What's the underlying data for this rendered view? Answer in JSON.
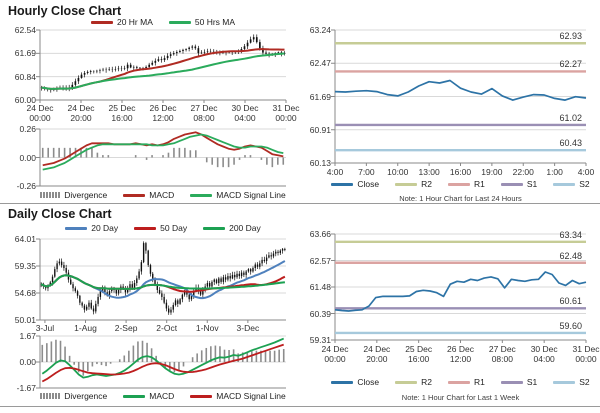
{
  "page": {
    "hourly_section_title": "Hourly Close Chart",
    "daily_section_title": "Daily Close Chart"
  },
  "colors": {
    "hourly_ma20": "#b02b23",
    "hourly_ma50": "#2bab5c",
    "daily_ma20": "#4f81bd",
    "daily_ma50": "#bd1e1e",
    "daily_ma200": "#1ca152",
    "close_line": "#2d73a6",
    "r2": "#c6cc96",
    "r1": "#dba3a1",
    "s1": "#9a8fb4",
    "s2": "#a6c9dc",
    "divergence": "#8c8c8c",
    "candle": "#111111",
    "grid": "#d9d9d9",
    "axis": "#888888"
  },
  "chart_data": [
    {
      "id": "hourly_price",
      "type": "candlestick",
      "title": "Hourly Close Chart",
      "ylim": [
        60.0,
        62.54
      ],
      "yticks": [
        "62.54",
        "61.69",
        "60.84",
        "60.00"
      ],
      "xticks": [
        [
          "24 Dec",
          "00:00"
        ],
        [
          "24 Dec",
          "20:00"
        ],
        [
          "25 Dec",
          "16:00"
        ],
        [
          "26 Dec",
          "12:00"
        ],
        [
          "27 Dec",
          "08:00"
        ],
        [
          "30 Dec",
          "04:00"
        ],
        [
          "31 Dec",
          "00:00"
        ]
      ],
      "legend": [
        {
          "label": "20 Hr MA",
          "color": "#b02b23",
          "swatch": "line"
        },
        {
          "label": "50 Hrs MA",
          "color": "#2bab5c",
          "swatch": "line"
        }
      ],
      "ma_windows": [
        {
          "window": 20,
          "color": "#b02b23"
        },
        {
          "window": 50,
          "color": "#2bab5c"
        }
      ],
      "wick_amp": 0.1,
      "close": [
        60.45,
        60.42,
        60.38,
        60.36,
        60.4,
        60.43,
        60.45,
        60.44,
        60.4,
        60.45,
        60.55,
        60.68,
        60.8,
        60.92,
        60.98,
        61.02,
        61.05,
        61.04,
        61.06,
        61.08,
        61.1,
        61.09,
        61.11,
        61.1,
        61.12,
        61.14,
        61.13,
        61.15,
        61.28,
        61.18,
        61.2,
        61.17,
        61.15,
        61.16,
        61.2,
        61.28,
        61.35,
        61.42,
        61.48,
        61.45,
        61.52,
        61.6,
        61.66,
        61.7,
        61.74,
        61.78,
        61.82,
        61.85,
        61.9,
        61.94,
        61.88,
        61.7,
        61.72,
        61.74,
        61.76,
        61.75,
        61.73,
        61.72,
        61.71,
        61.73,
        61.72,
        61.74,
        61.73,
        61.75,
        61.78,
        61.85,
        61.95,
        62.08,
        62.2,
        62.28,
        62.1,
        61.88,
        61.72,
        61.68,
        61.64,
        61.66,
        61.7,
        61.73,
        61.68,
        61.71
      ]
    },
    {
      "id": "hourly_macd",
      "type": "bar+line",
      "ylim": [
        -0.26,
        0.26
      ],
      "yticks": [
        "0.26",
        "0.00",
        "-0.26"
      ],
      "legend": [
        {
          "label": "Divergence",
          "color": "#8c8c8c",
          "swatch": "bars"
        },
        {
          "label": "MACD",
          "color": "#b02b23",
          "swatch": "line"
        },
        {
          "label": "MACD Signal Line",
          "color": "#2bab5c",
          "swatch": "line"
        }
      ],
      "macd_color": "#b02b23",
      "signal_color": "#2bab5c",
      "macd": [
        -0.07,
        -0.06,
        -0.05,
        -0.03,
        -0.01,
        0.02,
        0.05,
        0.08,
        0.11,
        0.13,
        0.13,
        0.13,
        0.13,
        0.12,
        0.12,
        0.12,
        0.12,
        0.13,
        0.12,
        0.11,
        0.12,
        0.11,
        0.12,
        0.14,
        0.17,
        0.19,
        0.21,
        0.22,
        0.23,
        0.21,
        0.18,
        0.15,
        0.12,
        0.1,
        0.08,
        0.07,
        0.08,
        0.1,
        0.11,
        0.1,
        0.09,
        0.06,
        0.03,
        0.02,
        0.01
      ],
      "signal": [
        -0.11,
        -0.1,
        -0.09,
        -0.07,
        -0.05,
        -0.02,
        0.01,
        0.04,
        0.07,
        0.09,
        0.11,
        0.12,
        0.12,
        0.12,
        0.12,
        0.12,
        0.12,
        0.12,
        0.12,
        0.12,
        0.11,
        0.11,
        0.11,
        0.12,
        0.13,
        0.15,
        0.17,
        0.19,
        0.2,
        0.21,
        0.2,
        0.18,
        0.16,
        0.14,
        0.12,
        0.1,
        0.09,
        0.09,
        0.1,
        0.1,
        0.1,
        0.09,
        0.07,
        0.05,
        0.04
      ]
    },
    {
      "id": "hourly_levels",
      "type": "line",
      "ylim": [
        60.13,
        63.24
      ],
      "yticks": [
        "63.24",
        "62.47",
        "61.69",
        "60.91",
        "60.13"
      ],
      "xticks": [
        "4:00",
        "7:00",
        "10:00",
        "13:00",
        "16:00",
        "19:00",
        "22:00",
        "1:00",
        "4:00"
      ],
      "levels": [
        {
          "label": "R2",
          "value": 62.93,
          "value_label": "62.93",
          "color": "#c6cc96"
        },
        {
          "label": "R1",
          "value": 62.27,
          "value_label": "62.27",
          "color": "#dba3a1"
        },
        {
          "label": "S1",
          "value": 61.02,
          "value_label": "61.02",
          "color": "#9a8fb4"
        },
        {
          "label": "S2",
          "value": 60.43,
          "value_label": "60.43",
          "color": "#a6c9dc"
        }
      ],
      "close_color": "#2d73a6",
      "close": [
        61.8,
        61.79,
        61.81,
        61.82,
        61.8,
        61.73,
        61.7,
        61.79,
        61.93,
        62.03,
        62.0,
        62.06,
        61.88,
        61.79,
        61.74,
        61.87,
        61.7,
        61.6,
        61.67,
        61.73,
        61.72,
        61.64,
        61.6,
        61.68,
        61.65
      ],
      "legend": [
        {
          "label": "Close",
          "color": "#2d73a6",
          "swatch": "line"
        },
        {
          "label": "R2",
          "color": "#c6cc96",
          "swatch": "line"
        },
        {
          "label": "R1",
          "color": "#dba3a1",
          "swatch": "line"
        },
        {
          "label": "S1",
          "color": "#9a8fb4",
          "swatch": "line"
        },
        {
          "label": "S2",
          "color": "#a6c9dc",
          "swatch": "line"
        }
      ],
      "note": "Note: 1 Hour Chart for Last 24 Hours"
    },
    {
      "id": "daily_price",
      "type": "candlestick",
      "title": "Daily Close Chart",
      "ylim": [
        50.01,
        64.01
      ],
      "yticks": [
        "64.01",
        "59.35",
        "54.68",
        "50.01"
      ],
      "xticks": [
        "3-Jul",
        "1-Aug",
        "2-Sep",
        "2-Oct",
        "1-Nov",
        "3-Dec"
      ],
      "legend": [
        {
          "label": "20 Day",
          "color": "#4f81bd",
          "swatch": "line"
        },
        {
          "label": "50 Day",
          "color": "#bd1e1e",
          "swatch": "line"
        },
        {
          "label": "200 Day",
          "color": "#1ca152",
          "swatch": "line"
        }
      ],
      "ma_windows": [
        {
          "window": 20,
          "color": "#4f81bd"
        },
        {
          "window": 50,
          "color": "#bd1e1e"
        },
        {
          "window": 200,
          "color": "#1ca152"
        }
      ],
      "wick_amp": 0.55,
      "close": [
        56.2,
        55.8,
        55.5,
        56.0,
        56.5,
        57.5,
        58.8,
        59.8,
        60.1,
        59.5,
        59.0,
        58.2,
        57.0,
        56.2,
        55.5,
        55.0,
        54.2,
        53.0,
        52.5,
        51.8,
        52.3,
        53.0,
        52.0,
        51.5,
        52.8,
        54.0,
        55.0,
        55.5,
        54.8,
        54.2,
        55.0,
        55.6,
        55.2,
        54.6,
        55.2,
        55.8,
        55.4,
        54.8,
        55.4,
        56.2,
        55.6,
        56.4,
        57.2,
        58.4,
        60.0,
        63.3,
        62.0,
        59.5,
        58.0,
        57.0,
        56.2,
        55.2,
        54.6,
        54.0,
        53.0,
        52.0,
        51.3,
        51.8,
        52.6,
        53.4,
        52.8,
        53.6,
        54.4,
        55.0,
        54.4,
        53.6,
        54.2,
        55.0,
        55.6,
        55.0,
        54.4,
        55.2,
        55.8,
        56.4,
        55.8,
        56.6,
        57.0,
        56.4,
        57.2,
        56.6,
        57.4,
        57.0,
        57.6,
        57.2,
        57.8,
        57.4,
        58.0,
        57.6,
        58.2,
        57.8,
        58.4,
        58.8,
        58.4,
        59.0,
        59.6,
        59.2,
        59.8,
        60.4,
        60.2,
        60.8,
        61.2,
        61.0,
        61.5,
        61.8,
        61.6,
        62.0,
        62.3,
        62.1
      ]
    },
    {
      "id": "daily_macd",
      "type": "bar+line",
      "ylim": [
        -1.67,
        1.67
      ],
      "yticks": [
        "1.67",
        "0.00",
        "-1.67"
      ],
      "legend": [
        {
          "label": "Divergence",
          "color": "#8c8c8c",
          "swatch": "bars"
        },
        {
          "label": "MACD",
          "color": "#1ca152",
          "swatch": "line"
        },
        {
          "label": "MACD Signal Line",
          "color": "#bd1e1e",
          "swatch": "line"
        }
      ],
      "macd_color": "#1ca152",
      "signal_color": "#bd1e1e",
      "macd": [
        -0.75,
        -0.55,
        -0.3,
        -0.05,
        0.1,
        0.05,
        -0.2,
        -0.5,
        -0.8,
        -1.0,
        -0.95,
        -0.85,
        -0.8,
        -0.85,
        -0.9,
        -0.85,
        -0.8,
        -0.7,
        -0.55,
        -0.35,
        -0.1,
        0.15,
        0.32,
        0.38,
        0.3,
        0.1,
        -0.15,
        -0.4,
        -0.6,
        -0.75,
        -0.8,
        -0.75,
        -0.65,
        -0.5,
        -0.35,
        -0.2,
        -0.05,
        0.1,
        0.22,
        0.3,
        0.28,
        0.35,
        0.45,
        0.4,
        0.5,
        0.62,
        0.75,
        0.85,
        0.95,
        1.05,
        1.15,
        1.25,
        1.38,
        1.5
      ],
      "signal": [
        -1.25,
        -1.1,
        -0.9,
        -0.7,
        -0.52,
        -0.4,
        -0.38,
        -0.42,
        -0.5,
        -0.6,
        -0.68,
        -0.72,
        -0.74,
        -0.76,
        -0.78,
        -0.8,
        -0.8,
        -0.78,
        -0.74,
        -0.68,
        -0.58,
        -0.45,
        -0.3,
        -0.18,
        -0.1,
        -0.08,
        -0.12,
        -0.2,
        -0.32,
        -0.45,
        -0.55,
        -0.62,
        -0.65,
        -0.64,
        -0.6,
        -0.54,
        -0.46,
        -0.36,
        -0.26,
        -0.16,
        -0.08,
        0.0,
        0.08,
        0.15,
        0.22,
        0.32,
        0.42,
        0.52,
        0.62,
        0.72,
        0.82,
        0.92,
        1.02,
        1.12
      ]
    },
    {
      "id": "weekly_levels",
      "type": "line",
      "ylim": [
        59.31,
        63.66
      ],
      "yticks": [
        "63.66",
        "62.57",
        "61.48",
        "60.39",
        "59.31"
      ],
      "xticks": [
        [
          "24 Dec",
          "00:00"
        ],
        [
          "24 Dec",
          "20:00"
        ],
        [
          "25 Dec",
          "16:00"
        ],
        [
          "26 Dec",
          "12:00"
        ],
        [
          "27 Dec",
          "08:00"
        ],
        [
          "30 Dec",
          "04:00"
        ],
        [
          "31 Dec",
          "00:00"
        ]
      ],
      "levels": [
        {
          "label": "R2",
          "value": 63.34,
          "value_label": "63.34",
          "color": "#c6cc96"
        },
        {
          "label": "R1",
          "value": 62.48,
          "value_label": "62.48",
          "color": "#dba3a1"
        },
        {
          "label": "S1",
          "value": 60.61,
          "value_label": "60.61",
          "color": "#9a8fb4"
        },
        {
          "label": "S2",
          "value": 59.6,
          "value_label": "59.60",
          "color": "#a6c9dc"
        }
      ],
      "close_color": "#2d73a6",
      "close": [
        60.55,
        60.52,
        60.5,
        60.53,
        60.55,
        60.7,
        61.05,
        61.1,
        61.1,
        61.1,
        61.1,
        61.12,
        61.3,
        61.35,
        61.32,
        61.25,
        61.1,
        61.6,
        61.72,
        61.68,
        61.8,
        61.75,
        61.85,
        61.9,
        61.82,
        61.45,
        61.8,
        61.75,
        61.72,
        61.78,
        61.8,
        62.1,
        62.0,
        61.65,
        61.55,
        61.75,
        61.62,
        61.68
      ],
      "legend": [
        {
          "label": "Close",
          "color": "#2d73a6",
          "swatch": "line"
        },
        {
          "label": "R2",
          "color": "#c6cc96",
          "swatch": "line"
        },
        {
          "label": "R1",
          "color": "#dba3a1",
          "swatch": "line"
        },
        {
          "label": "S1",
          "color": "#9a8fb4",
          "swatch": "line"
        },
        {
          "label": "S2",
          "color": "#a6c9dc",
          "swatch": "line"
        }
      ],
      "note": "Note: 1 Hour Chart for Last 1 Week"
    }
  ]
}
